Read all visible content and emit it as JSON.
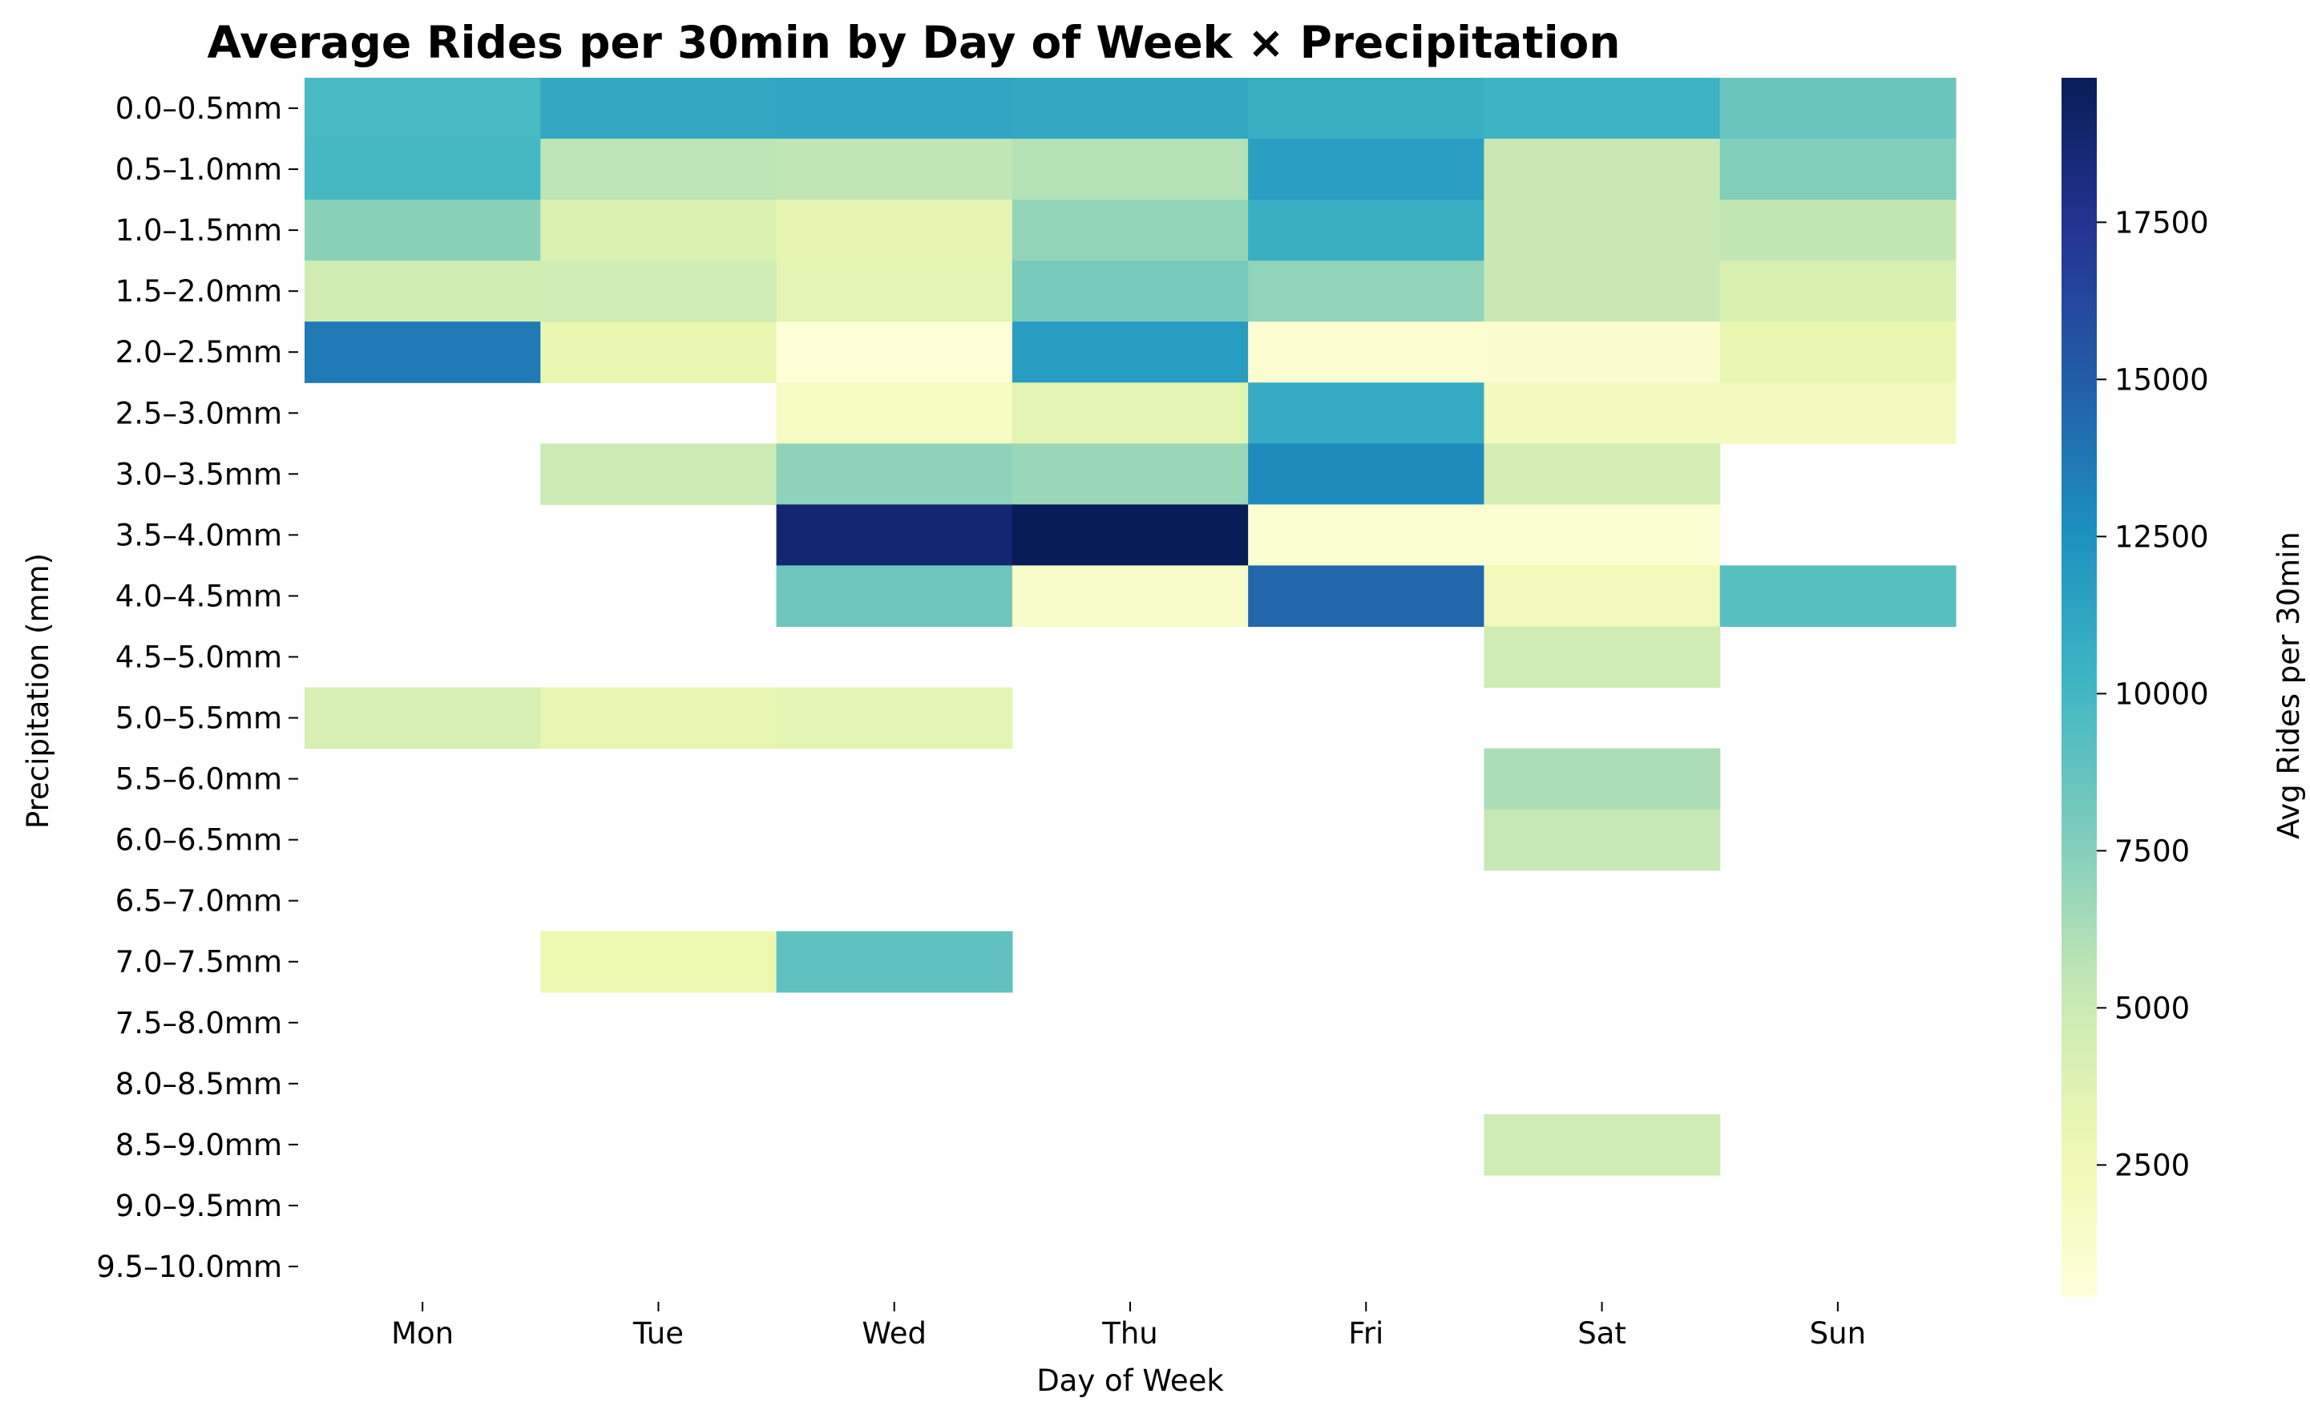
{
  "chart_data": {
    "type": "heatmap",
    "title": "Average Rides per 30min by Day of Week × Precipitation",
    "xlabel": "Day of Week",
    "ylabel": "Precipitation (mm)",
    "colorbar_label": "Avg Rides per 30min",
    "colormap": "YlGnBu",
    "vmin": 400,
    "vmax": 19800,
    "colorbar_ticks": [
      2500,
      5000,
      7500,
      10000,
      12500,
      15000,
      17500
    ],
    "x_categories": [
      "Mon",
      "Tue",
      "Wed",
      "Thu",
      "Fri",
      "Sat",
      "Sun"
    ],
    "y_categories": [
      "0.0–0.5mm",
      "0.5–1.0mm",
      "1.0–1.5mm",
      "1.5–2.0mm",
      "2.0–2.5mm",
      "2.5–3.0mm",
      "3.0–3.5mm",
      "3.5–4.0mm",
      "4.0–4.5mm",
      "4.5–5.0mm",
      "5.0–5.5mm",
      "5.5–6.0mm",
      "6.0–6.5mm",
      "6.5–7.0mm",
      "7.0–7.5mm",
      "7.5–8.0mm",
      "8.0–8.5mm",
      "8.5–9.0mm",
      "9.0–9.5mm",
      "9.5–10.0mm"
    ],
    "values": [
      [
        9800,
        11000,
        11200,
        11000,
        10600,
        10300,
        8500
      ],
      [
        9900,
        5600,
        5500,
        5900,
        11600,
        5200,
        7600
      ],
      [
        7300,
        4000,
        3300,
        7000,
        10600,
        5200,
        5400
      ],
      [
        4700,
        4800,
        3400,
        8000,
        7100,
        5200,
        4100
      ],
      [
        13600,
        3000,
        500,
        11800,
        800,
        1000,
        3000
      ],
      [
        null,
        null,
        1800,
        3500,
        10800,
        2000,
        2000
      ],
      [
        null,
        5000,
        7200,
        6800,
        12800,
        4400,
        null
      ],
      [
        null,
        null,
        18800,
        19800,
        900,
        900,
        null
      ],
      [
        null,
        null,
        8400,
        1300,
        14500,
        2200,
        9200
      ],
      [
        null,
        null,
        null,
        null,
        null,
        4800,
        null
      ],
      [
        4300,
        3200,
        3500,
        null,
        null,
        null,
        null
      ],
      [
        null,
        null,
        null,
        null,
        null,
        6200,
        null
      ],
      [
        null,
        null,
        null,
        null,
        null,
        5300,
        null
      ],
      [
        null,
        null,
        null,
        null,
        null,
        null,
        null
      ],
      [
        null,
        2800,
        8900,
        null,
        null,
        null,
        null
      ],
      [
        null,
        null,
        null,
        null,
        null,
        null,
        null
      ],
      [
        null,
        null,
        null,
        null,
        null,
        null,
        null
      ],
      [
        null,
        null,
        null,
        null,
        null,
        4800,
        null
      ],
      [
        null,
        null,
        null,
        null,
        null,
        null,
        null
      ],
      [
        null,
        null,
        null,
        null,
        null,
        null,
        null
      ]
    ]
  }
}
